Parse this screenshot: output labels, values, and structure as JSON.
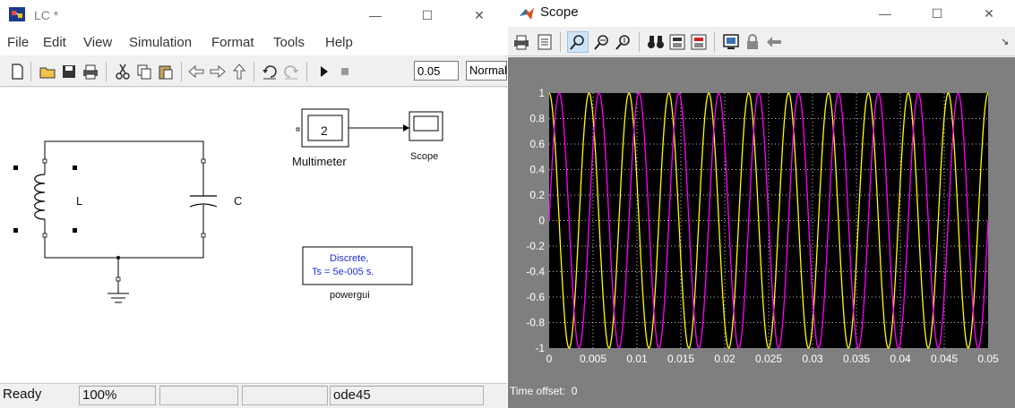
{
  "sim_window": {
    "title": "LC *",
    "menu": [
      "File",
      "Edit",
      "View",
      "Simulation",
      "Format",
      "Tools",
      "Help"
    ],
    "stop_time": "0.05",
    "sim_mode": "Normal",
    "blocks": {
      "inductor_label": "L",
      "capacitor_label": "C",
      "multimeter_value": "2",
      "multimeter_label": "Multimeter",
      "scope_label": "Scope",
      "powergui_line1": "Discrete,",
      "powergui_line2": "Ts = 5e-005 s.",
      "powergui_label": "powergui"
    },
    "status": {
      "state": "Ready",
      "zoom": "100%",
      "solver": "ode45"
    },
    "colors": {
      "powergui_text": "#1a2fd8"
    }
  },
  "scope_window": {
    "title": "Scope",
    "time_offset_label": "Time offset:",
    "time_offset_value": "0",
    "colors": {
      "background": "#000000",
      "series_yellow": "#ffff00",
      "series_magenta": "#ff00ff",
      "grid": "#ffffff"
    },
    "icons": [
      "print-icon",
      "params-icon",
      "zoom-icon",
      "zoom-x-icon",
      "zoom-y-icon",
      "binoculars-icon",
      "save-axes-icon",
      "restore-axes-icon",
      "floating-scope-icon",
      "lock-icon",
      "signal-selector-icon"
    ]
  },
  "chart_data": {
    "type": "line",
    "xlabel": "",
    "ylabel": "",
    "xlim": [
      0,
      0.05
    ],
    "ylim": [
      -1,
      1
    ],
    "x_ticks": [
      "0",
      "0.005",
      "0.01",
      "0.015",
      "0.02",
      "0.025",
      "0.03",
      "0.035",
      "0.04",
      "0.045",
      "0.05"
    ],
    "y_ticks": [
      "1",
      "0.8",
      "0.6",
      "0.4",
      "0.2",
      "0",
      "-0.2",
      "-0.4",
      "-0.6",
      "-0.8",
      "-1"
    ],
    "grid": true,
    "series": [
      {
        "color": "#ffff00",
        "amplitude": 1,
        "frequency_hz": 220,
        "phase_rad": 1.5708
      },
      {
        "color": "#ff00ff",
        "amplitude": 1,
        "frequency_hz": 220,
        "phase_rad": 0
      }
    ]
  }
}
